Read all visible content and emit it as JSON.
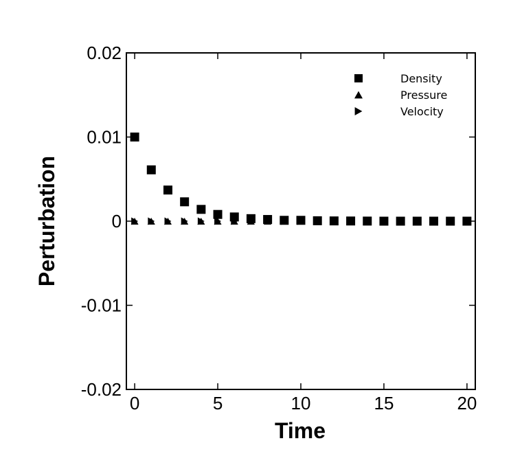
{
  "chart_data": {
    "type": "scatter",
    "title": "",
    "xlabel": "Time",
    "ylabel": "Perturbation",
    "xlim": [
      -0.5,
      20.5
    ],
    "ylim": [
      -0.02,
      0.02
    ],
    "xticks": [
      0,
      5,
      10,
      15,
      20
    ],
    "xtick_labels": [
      "0",
      "5",
      "10",
      "15",
      "20"
    ],
    "yticks": [
      0.02,
      0.01,
      0,
      -0.01,
      -0.02
    ],
    "ytick_labels": [
      "0.02",
      "0.01",
      "0",
      "-0.01",
      "-0.02"
    ],
    "grid": false,
    "legend_position": "top-right",
    "x": [
      0,
      1,
      2,
      3,
      4,
      5,
      6,
      7,
      8,
      9,
      10,
      11,
      12,
      13,
      14,
      15,
      16,
      17,
      18,
      19,
      20
    ],
    "series": [
      {
        "name": "Density",
        "marker": "square",
        "values": [
          0.01,
          0.0061,
          0.0037,
          0.0023,
          0.0014,
          0.0008,
          0.0005,
          0.0003,
          0.0002,
          0.0001,
          0.0001,
          5e-05,
          3e-05,
          2e-05,
          1e-05,
          0,
          0,
          0,
          0,
          0,
          0
        ]
      },
      {
        "name": "Pressure",
        "marker": "triangle-up",
        "values": [
          0,
          0,
          0,
          0,
          0,
          0,
          0,
          0,
          0,
          0,
          0,
          0,
          0,
          0,
          0,
          0,
          0,
          0,
          0,
          0,
          0
        ]
      },
      {
        "name": "Velocity",
        "marker": "triangle-right",
        "values": [
          0,
          0,
          0,
          0,
          0,
          0,
          0,
          0,
          0,
          0,
          0,
          0,
          0,
          0,
          0,
          0,
          0,
          0,
          0,
          0,
          0
        ]
      }
    ]
  }
}
